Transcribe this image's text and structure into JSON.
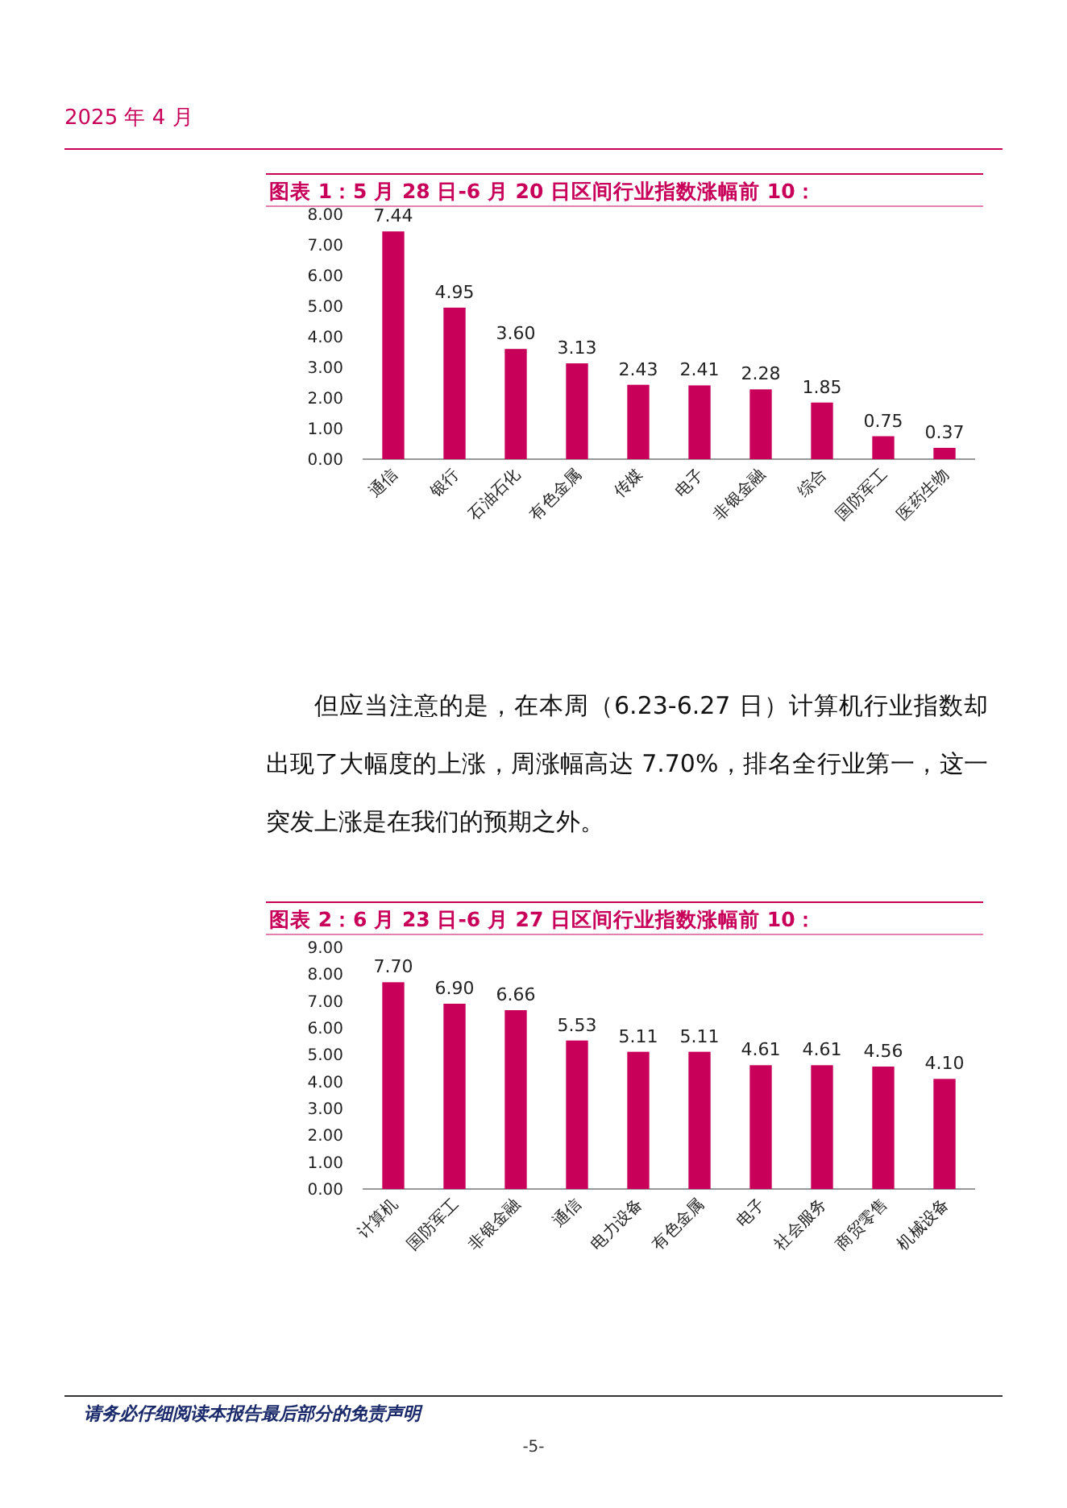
{
  "chart_data": [
    {
      "type": "bar",
      "title": "图表 1：5 月 28 日-6 月 20 日区间行业指数涨幅前 10：",
      "categories": [
        "通信",
        "银行",
        "石油石化",
        "有色金属",
        "传媒",
        "电子",
        "非银金融",
        "综合",
        "国防军工",
        "医药生物"
      ],
      "values": [
        7.44,
        4.95,
        3.6,
        3.13,
        2.43,
        2.41,
        2.28,
        1.85,
        0.75,
        0.37
      ],
      "value_labels": [
        "7.44",
        "4.95",
        "3.60",
        "3.13",
        "2.43",
        "2.41",
        "2.28",
        "1.85",
        "0.75",
        "0.37"
      ],
      "color": "#c8005a",
      "ylim": [
        0,
        8
      ],
      "yticks": [
        {
          "value": 0,
          "label": "0.00"
        },
        {
          "value": 1,
          "label": "1.00"
        },
        {
          "value": 2,
          "label": "2.00"
        },
        {
          "value": 3,
          "label": "3.00"
        },
        {
          "value": 4,
          "label": "4.00"
        },
        {
          "value": 5,
          "label": "5.00"
        },
        {
          "value": 6,
          "label": "6.00"
        },
        {
          "value": 7,
          "label": "7.00"
        },
        {
          "value": 8,
          "label": "8.00"
        }
      ],
      "annotations": [
        "2025 年 4 月",
        "但应当注意的是，在本周（6.23-6.27 日）计算机行业指数却出现了大幅度的上涨，周涨幅高达 7.70%，排名全行业第一，这一突发上涨是在我们的预期之外。"
      ]
    },
    {
      "type": "bar",
      "title": "图表 2：6 月 23 日-6 月 27 日区间行业指数涨幅前 10：",
      "categories": [
        "计算机",
        "国防军工",
        "非银金融",
        "通信",
        "电力设备",
        "有色金属",
        "电子",
        "社会服务",
        "商贸零售",
        "机械设备"
      ],
      "values": [
        7.7,
        6.9,
        6.66,
        5.53,
        5.11,
        5.11,
        4.61,
        4.61,
        4.56,
        4.1
      ],
      "value_labels": [
        "7.70",
        "6.90",
        "6.66",
        "5.53",
        "5.11",
        "5.11",
        "4.61",
        "4.61",
        "4.56",
        "4.10"
      ],
      "color": "#c8005a",
      "ylim": [
        0,
        9
      ],
      "yticks": [
        {
          "value": 0,
          "label": "0.00"
        },
        {
          "value": 1,
          "label": "1.00"
        },
        {
          "value": 2,
          "label": "2.00"
        },
        {
          "value": 3,
          "label": "3.00"
        },
        {
          "value": 4,
          "label": "4.00"
        },
        {
          "value": 5,
          "label": "5.00"
        },
        {
          "value": 6,
          "label": "6.00"
        },
        {
          "value": 7,
          "label": "7.00"
        },
        {
          "value": 8,
          "label": "8.00"
        },
        {
          "value": 9,
          "label": "9.00"
        }
      ],
      "annotations": [
        "请务必仔细阅读本报告最后部分的免责声明",
        "-5-"
      ]
    }
  ]
}
